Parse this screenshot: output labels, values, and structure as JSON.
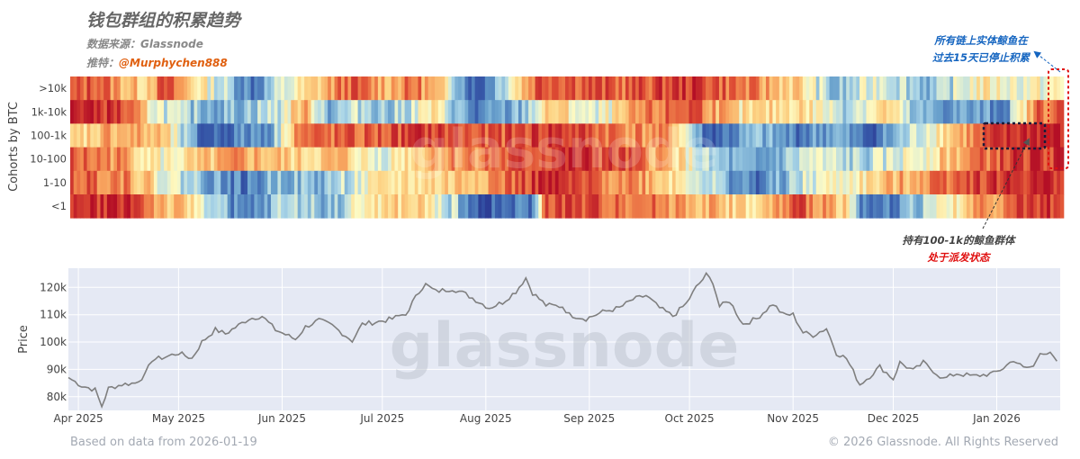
{
  "header": {
    "title": "钱包群组的积累趋势",
    "source": "数据来源：Glassnode",
    "twitter_label": "推特：",
    "twitter_handle": "@Murphychen888"
  },
  "annotations": {
    "whale_entity": [
      "所有链上实体鲸鱼在",
      "过去15天已停止积累"
    ],
    "cohort_100_1k_line1": "持有100-1k的鲸鱼群体",
    "cohort_100_1k_line2": "处于派发状态"
  },
  "watermark": "glassnode",
  "footer": {
    "left": "Based on data from 2026-01-19",
    "right": "© 2026 Glassnode. All Rights Reserved"
  },
  "colors": {
    "accumulation": "#b40f26",
    "distribution": "#2c3d96",
    "neutral": "#fdfbc4",
    "price_line": "#7f7f7f",
    "annotation_blue": "#1565c0",
    "annotation_red": "#e01010",
    "handle_orange": "#e06010"
  },
  "chart_data": [
    {
      "type": "heatmap",
      "ylabel": "Cohorts by BTC",
      "rows": [
        ">10k",
        "1k-10k",
        "100-1k",
        "10-100",
        "1-10",
        "<1"
      ],
      "x_range": [
        "2025-03-29",
        "2026-01-19"
      ],
      "color_scale": "accumulation score 0 (distribution, blue) to 1 (accumulation, red)",
      "segments": {
        ">10k": [
          [
            "2025-03-29",
            0.78
          ],
          [
            "2025-04-05",
            0.88
          ],
          [
            "2025-04-12",
            0.72
          ],
          [
            "2025-04-19",
            0.62
          ],
          [
            "2025-04-26",
            0.85
          ],
          [
            "2025-05-04",
            0.62
          ],
          [
            "2025-05-14",
            0.38
          ],
          [
            "2025-05-22",
            0.18
          ],
          [
            "2025-06-01",
            0.45
          ],
          [
            "2025-06-10",
            0.62
          ],
          [
            "2025-06-20",
            0.84
          ],
          [
            "2025-07-01",
            0.7
          ],
          [
            "2025-07-10",
            0.8
          ],
          [
            "2025-07-20",
            0.5
          ],
          [
            "2025-07-28",
            0.08
          ],
          [
            "2025-08-16",
            0.9
          ],
          [
            "2025-09-10",
            0.82
          ],
          [
            "2025-10-01",
            0.92
          ],
          [
            "2025-11-01",
            0.62
          ],
          [
            "2025-11-12",
            0.28
          ],
          [
            "2025-11-25",
            0.5
          ],
          [
            "2025-12-12",
            0.3
          ],
          [
            "2025-12-25",
            0.55
          ],
          [
            "2026-01-05",
            0.5
          ],
          [
            "2026-01-19",
            0.5
          ]
        ],
        "1k-10k": [
          [
            "2025-03-29",
            0.97
          ],
          [
            "2025-04-12",
            0.9
          ],
          [
            "2025-04-22",
            0.52
          ],
          [
            "2025-05-01",
            0.35
          ],
          [
            "2025-05-15",
            0.3
          ],
          [
            "2025-05-30",
            0.42
          ],
          [
            "2025-06-06",
            0.72
          ],
          [
            "2025-06-14",
            0.3
          ],
          [
            "2025-06-24",
            0.42
          ],
          [
            "2025-07-02",
            0.32
          ],
          [
            "2025-07-15",
            0.55
          ],
          [
            "2025-07-28",
            0.15
          ],
          [
            "2025-08-10",
            0.3
          ],
          [
            "2025-08-20",
            0.65
          ],
          [
            "2025-09-01",
            0.4
          ],
          [
            "2025-09-15",
            0.72
          ],
          [
            "2025-10-01",
            0.88
          ],
          [
            "2025-10-15",
            0.55
          ],
          [
            "2025-11-01",
            0.62
          ],
          [
            "2025-11-15",
            0.4
          ],
          [
            "2025-11-28",
            0.62
          ],
          [
            "2025-12-06",
            0.28
          ],
          [
            "2026-01-02",
            0.22
          ],
          [
            "2026-01-12",
            0.82
          ],
          [
            "2026-01-19",
            0.82
          ]
        ],
        "100-1k": [
          [
            "2025-03-29",
            0.58
          ],
          [
            "2025-04-10",
            0.72
          ],
          [
            "2025-04-25",
            0.64
          ],
          [
            "2025-05-07",
            0.1
          ],
          [
            "2025-05-28",
            0.28
          ],
          [
            "2025-06-04",
            0.78
          ],
          [
            "2025-06-25",
            0.82
          ],
          [
            "2025-07-12",
            0.9
          ],
          [
            "2025-07-30",
            0.82
          ],
          [
            "2025-08-20",
            0.92
          ],
          [
            "2025-09-10",
            0.78
          ],
          [
            "2025-09-25",
            0.7
          ],
          [
            "2025-10-05",
            0.1
          ],
          [
            "2025-10-20",
            0.3
          ],
          [
            "2025-11-01",
            0.18
          ],
          [
            "2025-11-12",
            0.3
          ],
          [
            "2025-11-22",
            0.1
          ],
          [
            "2025-12-15",
            0.62
          ],
          [
            "2025-12-30",
            0.86
          ],
          [
            "2026-01-10",
            0.96
          ],
          [
            "2026-01-19",
            0.96
          ]
        ],
        "10-100": [
          [
            "2025-03-29",
            0.82
          ],
          [
            "2025-04-12",
            0.75
          ],
          [
            "2025-04-25",
            0.5
          ],
          [
            "2025-05-05",
            0.58
          ],
          [
            "2025-05-18",
            0.72
          ],
          [
            "2025-06-05",
            0.6
          ],
          [
            "2025-06-18",
            0.66
          ],
          [
            "2025-06-28",
            0.45
          ],
          [
            "2025-07-15",
            0.72
          ],
          [
            "2025-08-05",
            0.82
          ],
          [
            "2025-08-25",
            0.92
          ],
          [
            "2025-09-10",
            0.85
          ],
          [
            "2025-09-25",
            0.65
          ],
          [
            "2025-10-05",
            0.35
          ],
          [
            "2025-10-20",
            0.2
          ],
          [
            "2025-11-05",
            0.45
          ],
          [
            "2025-11-20",
            0.35
          ],
          [
            "2025-12-10",
            0.55
          ],
          [
            "2025-12-20",
            0.72
          ],
          [
            "2026-01-05",
            0.9
          ],
          [
            "2026-01-19",
            0.9
          ]
        ],
        "1-10": [
          [
            "2025-03-29",
            0.85
          ],
          [
            "2025-04-15",
            0.78
          ],
          [
            "2025-04-25",
            0.5
          ],
          [
            "2025-05-05",
            0.35
          ],
          [
            "2025-05-20",
            0.15
          ],
          [
            "2025-05-30",
            0.35
          ],
          [
            "2025-06-10",
            0.28
          ],
          [
            "2025-06-22",
            0.45
          ],
          [
            "2025-07-05",
            0.58
          ],
          [
            "2025-07-20",
            0.62
          ],
          [
            "2025-08-08",
            0.82
          ],
          [
            "2025-08-18",
            0.94
          ],
          [
            "2025-08-28",
            0.82
          ],
          [
            "2025-09-15",
            0.75
          ],
          [
            "2025-10-01",
            0.5
          ],
          [
            "2025-10-10",
            0.3
          ],
          [
            "2025-10-20",
            0.15
          ],
          [
            "2025-11-05",
            0.45
          ],
          [
            "2025-11-20",
            0.55
          ],
          [
            "2025-12-05",
            0.72
          ],
          [
            "2025-12-20",
            0.88
          ],
          [
            "2026-01-19",
            0.95
          ]
        ],
        "<1": [
          [
            "2025-03-29",
            0.88
          ],
          [
            "2025-04-15",
            0.96
          ],
          [
            "2025-04-25",
            0.68
          ],
          [
            "2025-05-05",
            0.55
          ],
          [
            "2025-05-20",
            0.12
          ],
          [
            "2025-06-01",
            0.4
          ],
          [
            "2025-06-15",
            0.3
          ],
          [
            "2025-06-25",
            0.55
          ],
          [
            "2025-07-10",
            0.62
          ],
          [
            "2025-07-22",
            0.35
          ],
          [
            "2025-07-28",
            0.08
          ],
          [
            "2025-08-14",
            0.18
          ],
          [
            "2025-08-18",
            0.88
          ],
          [
            "2025-09-10",
            0.82
          ],
          [
            "2025-09-25",
            0.75
          ],
          [
            "2025-10-10",
            0.65
          ],
          [
            "2025-10-20",
            0.55
          ],
          [
            "2025-11-01",
            0.85
          ],
          [
            "2025-11-15",
            0.65
          ],
          [
            "2025-11-22",
            0.08
          ],
          [
            "2025-12-10",
            0.4
          ],
          [
            "2025-12-25",
            0.7
          ],
          [
            "2026-01-05",
            0.85
          ],
          [
            "2026-01-19",
            0.92
          ]
        ]
      }
    },
    {
      "type": "line",
      "ylabel": "Price",
      "yticks": [
        "80k",
        "90k",
        "100k",
        "110k",
        "120k"
      ],
      "ylim": [
        75000,
        127000
      ],
      "xlim": [
        "2025-03-29",
        "2026-01-20"
      ],
      "xticks": [
        {
          "date": "2025-04-01",
          "label": "Apr 2025"
        },
        {
          "date": "2025-05-01",
          "label": "May 2025"
        },
        {
          "date": "2025-06-01",
          "label": "Jun 2025"
        },
        {
          "date": "2025-07-01",
          "label": "Jul 2025"
        },
        {
          "date": "2025-08-01",
          "label": "Aug 2025"
        },
        {
          "date": "2025-09-01",
          "label": "Sep 2025"
        },
        {
          "date": "2025-10-01",
          "label": "Oct 2025"
        },
        {
          "date": "2025-11-01",
          "label": "Nov 2025"
        },
        {
          "date": "2025-12-01",
          "label": "Dec 2025"
        },
        {
          "date": "2026-01-01",
          "label": "Jan 2026"
        }
      ],
      "series": [
        {
          "points": [
            [
              "2025-03-29",
              87000
            ],
            [
              "2025-04-02",
              84000
            ],
            [
              "2025-04-06",
              82500
            ],
            [
              "2025-04-08",
              76500
            ],
            [
              "2025-04-10",
              83000
            ],
            [
              "2025-04-14",
              84500
            ],
            [
              "2025-04-18",
              85000
            ],
            [
              "2025-04-21",
              88000
            ],
            [
              "2025-04-23",
              93500
            ],
            [
              "2025-04-27",
              94500
            ],
            [
              "2025-05-01",
              96000
            ],
            [
              "2025-05-05",
              94000
            ],
            [
              "2025-05-08",
              100000
            ],
            [
              "2025-05-12",
              104500
            ],
            [
              "2025-05-15",
              103000
            ],
            [
              "2025-05-22",
              108500
            ],
            [
              "2025-05-26",
              109500
            ],
            [
              "2025-05-30",
              104500
            ],
            [
              "2025-06-05",
              101000
            ],
            [
              "2025-06-08",
              105500
            ],
            [
              "2025-06-12",
              108000
            ],
            [
              "2025-06-16",
              106000
            ],
            [
              "2025-06-22",
              100500
            ],
            [
              "2025-06-25",
              106500
            ],
            [
              "2025-06-30",
              107500
            ],
            [
              "2025-07-04",
              108500
            ],
            [
              "2025-07-09",
              111000
            ],
            [
              "2025-07-11",
              117500
            ],
            [
              "2025-07-14",
              121000
            ],
            [
              "2025-07-17",
              118500
            ],
            [
              "2025-07-22",
              119500
            ],
            [
              "2025-07-26",
              117500
            ],
            [
              "2025-08-02",
              112500
            ],
            [
              "2025-08-06",
              114500
            ],
            [
              "2025-08-10",
              118500
            ],
            [
              "2025-08-13",
              123500
            ],
            [
              "2025-08-15",
              118000
            ],
            [
              "2025-08-19",
              113500
            ],
            [
              "2025-08-24",
              113000
            ],
            [
              "2025-08-26",
              110000
            ],
            [
              "2025-08-31",
              108500
            ],
            [
              "2025-09-05",
              111000
            ],
            [
              "2025-09-10",
              112500
            ],
            [
              "2025-09-14",
              115500
            ],
            [
              "2025-09-18",
              117000
            ],
            [
              "2025-09-22",
              112500
            ],
            [
              "2025-09-26",
              109500
            ],
            [
              "2025-09-30",
              114000
            ],
            [
              "2025-10-03",
              120000
            ],
            [
              "2025-10-06",
              124500
            ],
            [
              "2025-10-08",
              122000
            ],
            [
              "2025-10-10",
              113000
            ],
            [
              "2025-10-13",
              115000
            ],
            [
              "2025-10-17",
              106500
            ],
            [
              "2025-10-21",
              108500
            ],
            [
              "2025-10-26",
              114000
            ],
            [
              "2025-10-29",
              110000
            ],
            [
              "2025-11-01",
              110000
            ],
            [
              "2025-11-04",
              103500
            ],
            [
              "2025-11-07",
              102500
            ],
            [
              "2025-11-11",
              105000
            ],
            [
              "2025-11-14",
              96000
            ],
            [
              "2025-11-17",
              94000
            ],
            [
              "2025-11-21",
              84500
            ],
            [
              "2025-11-24",
              87500
            ],
            [
              "2025-11-27",
              91000
            ],
            [
              "2025-12-01",
              86500
            ],
            [
              "2025-12-03",
              92500
            ],
            [
              "2025-12-07",
              89500
            ],
            [
              "2025-12-10",
              92500
            ],
            [
              "2025-12-14",
              88500
            ],
            [
              "2025-12-16",
              86500
            ],
            [
              "2025-12-20",
              88500
            ],
            [
              "2025-12-25",
              87500
            ],
            [
              "2025-12-31",
              88500
            ],
            [
              "2026-01-03",
              90500
            ],
            [
              "2026-01-06",
              93500
            ],
            [
              "2026-01-09",
              90500
            ],
            [
              "2026-01-12",
              91000
            ],
            [
              "2026-01-14",
              96500
            ],
            [
              "2026-01-17",
              95500
            ],
            [
              "2026-01-19",
              93000
            ]
          ]
        }
      ]
    }
  ]
}
